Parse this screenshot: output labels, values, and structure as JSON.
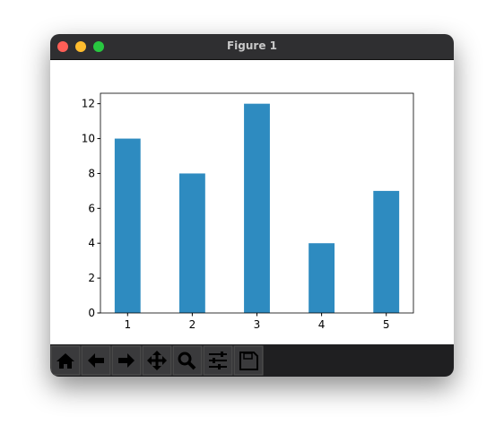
{
  "window": {
    "title": "Figure 1"
  },
  "chart_data": {
    "type": "bar",
    "x": [
      1,
      2,
      3,
      4,
      5
    ],
    "values": [
      10,
      8,
      12,
      4,
      7
    ],
    "color": "#2e8bc0",
    "xlim": [
      0.58,
      5.42
    ],
    "xticks": [
      1,
      2,
      3,
      4,
      5
    ],
    "ylim": [
      0,
      12.6
    ],
    "yticks": [
      0,
      2,
      4,
      6,
      8,
      10,
      12
    ],
    "grid": false
  }
}
